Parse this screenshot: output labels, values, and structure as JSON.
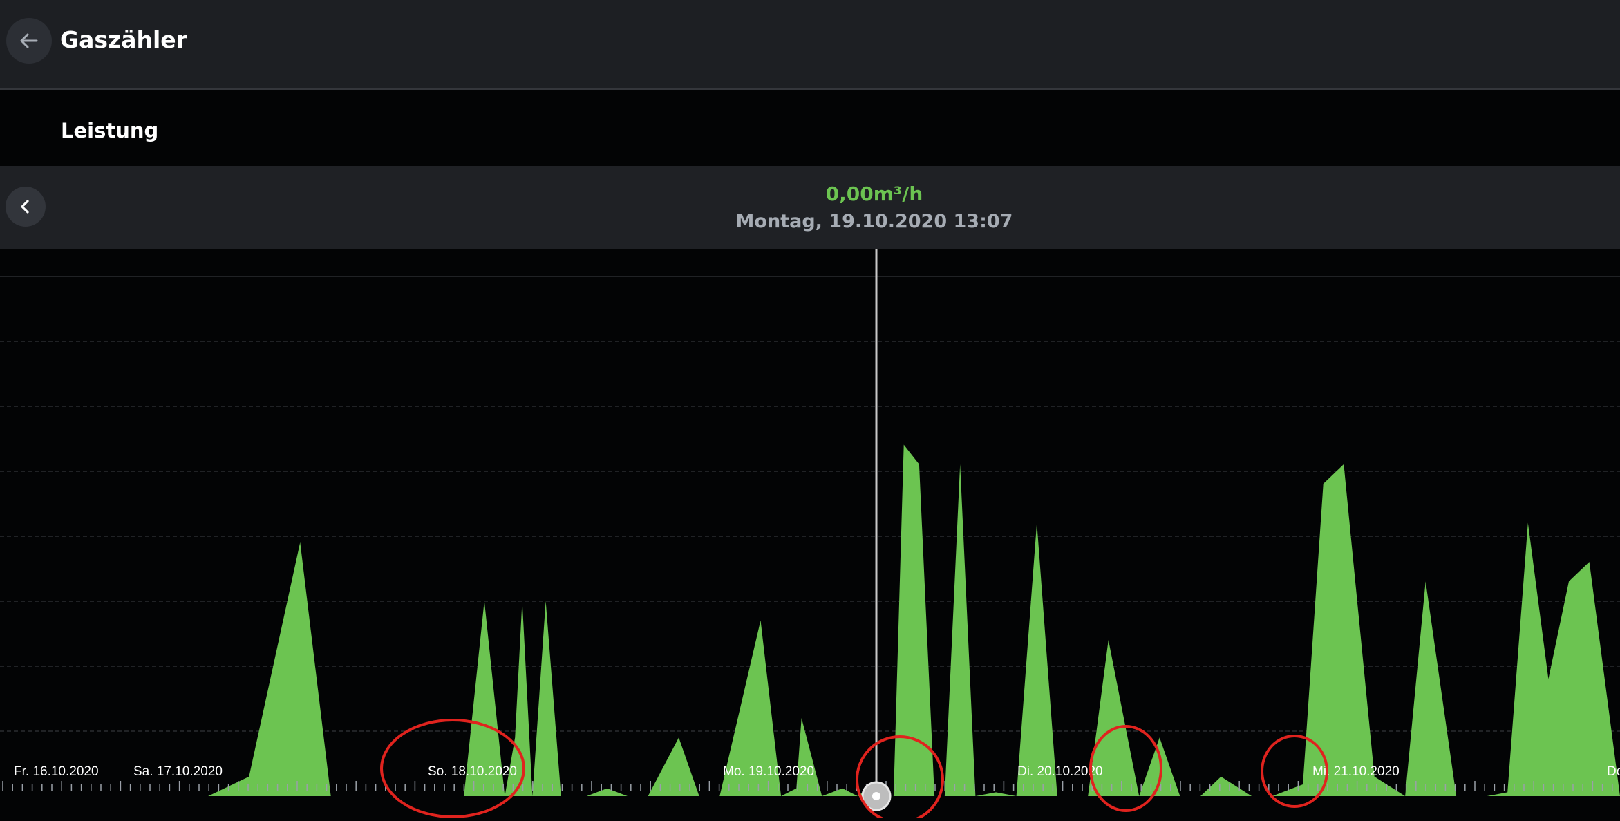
{
  "app": {
    "title": "Gaszähler",
    "back_icon": "arrow-left-icon"
  },
  "section": {
    "title": "Leistung"
  },
  "reading": {
    "value": "0,00m³/h",
    "datetime": "Montag, 19.10.2020 13:07",
    "prev_icon": "chevron-left-icon",
    "value_color": "#6cc451"
  },
  "chart_data": {
    "type": "area",
    "series": [
      {
        "color": "#6cc451",
        "x": [
          0,
          18,
          20,
          24,
          29,
          32,
          45,
          47,
          49,
          50,
          50.7,
          51.7,
          53,
          54.5,
          57,
          59,
          61,
          63,
          66,
          68,
          70,
          74,
          76,
          77.5,
          78,
          80,
          82,
          83.5,
          84,
          86,
          87,
          88,
          89.5,
          91,
          92,
          93.5,
          95,
          97,
          99,
          101,
          103,
          106,
          108,
          111,
          113,
          115,
          117,
          119,
          122,
          124,
          127,
          129,
          131,
          134,
          137,
          139,
          142,
          145,
          147,
          149,
          151,
          153,
          155,
          158
        ],
        "y": [
          0,
          0,
          0,
          0.05,
          0.65,
          0,
          0,
          0.5,
          0,
          0.15,
          0.5,
          0,
          0.5,
          0,
          0,
          0.02,
          0,
          0,
          0.15,
          0,
          0,
          0.45,
          0,
          0.02,
          0.2,
          0,
          0.02,
          0,
          0.01,
          0,
          0,
          0.9,
          0.85,
          0,
          0,
          0.85,
          0,
          0.01,
          0,
          0.7,
          0,
          0,
          0.4,
          0,
          0.15,
          0,
          0,
          0.05,
          0,
          0,
          0.03,
          0.8,
          0.85,
          0.05,
          0,
          0.55,
          0,
          0,
          0.01,
          0.7,
          0.3,
          0.55,
          0.6,
          0
        ]
      }
    ],
    "x_tick_labels": [
      "Fr. 16.10.2020",
      "Sa. 17.10.2020",
      "So. 18.10.2020",
      "Mo. 19.10.2020",
      "Di. 20.10.2020",
      "Mi. 21.10.2020",
      "Do"
    ],
    "annotations": [
      "red-ellipse-so-18",
      "red-ellipse-cursor",
      "red-ellipse-di-20",
      "red-ellipse-mi-21"
    ],
    "cursor": {
      "datetime": "Montag, 19.10.2020 13:07",
      "value": "0,00m³/h"
    },
    "grid": true,
    "annotation_color": "#e0231e"
  }
}
